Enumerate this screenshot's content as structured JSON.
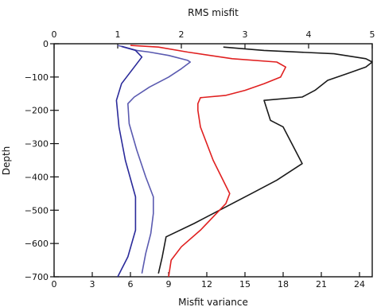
{
  "chart_data": {
    "type": "line",
    "title": "RMS misfit",
    "xlabel": "Misfit variance",
    "ylabel": "Depth",
    "x_bottom": {
      "label": "Misfit variance",
      "range": [
        0,
        25
      ],
      "ticks": [
        0,
        3,
        6,
        9,
        12,
        15,
        18,
        21,
        24
      ]
    },
    "x_top": {
      "label": "RMS misfit",
      "range": [
        0,
        5
      ],
      "ticks": [
        0,
        1,
        2,
        3,
        4,
        5
      ]
    },
    "y": {
      "label": "Depth",
      "range": [
        -700,
        0
      ],
      "ticks": [
        0,
        -100,
        -200,
        -300,
        -400,
        -500,
        -600,
        -700
      ]
    },
    "grid": false,
    "series": [
      {
        "color": "#1a1a1a",
        "points": [
          [
            13.3,
            -10
          ],
          [
            16.5,
            -20
          ],
          [
            22,
            -30
          ],
          [
            24.5,
            -45
          ],
          [
            25,
            -55
          ],
          [
            24.5,
            -70
          ],
          [
            23,
            -90
          ],
          [
            21.5,
            -110
          ],
          [
            20.5,
            -140
          ],
          [
            19.5,
            -160
          ],
          [
            16.5,
            -170
          ],
          [
            17,
            -230
          ],
          [
            18,
            -250
          ],
          [
            19.5,
            -360
          ],
          [
            17.5,
            -410
          ],
          [
            15.5,
            -450
          ],
          [
            13,
            -500
          ],
          [
            11,
            -540
          ],
          [
            8.8,
            -580
          ],
          [
            8.5,
            -640
          ],
          [
            8.2,
            -690
          ]
        ]
      },
      {
        "color": "#e02020",
        "points": [
          [
            6,
            -5
          ],
          [
            8.2,
            -10
          ],
          [
            10.5,
            -25
          ],
          [
            14,
            -45
          ],
          [
            17.5,
            -55
          ],
          [
            18.2,
            -70
          ],
          [
            17.8,
            -100
          ],
          [
            16.5,
            -120
          ],
          [
            15,
            -140
          ],
          [
            13.5,
            -155
          ],
          [
            11.5,
            -162
          ],
          [
            11.3,
            -180
          ],
          [
            11.3,
            -200
          ],
          [
            11.5,
            -250
          ],
          [
            12.5,
            -350
          ],
          [
            13.8,
            -450
          ],
          [
            13.5,
            -480
          ],
          [
            12.5,
            -520
          ],
          [
            11.5,
            -560
          ],
          [
            10,
            -610
          ],
          [
            9.2,
            -650
          ],
          [
            9,
            -700
          ]
        ]
      },
      {
        "color": "#5a5ab0",
        "points": [
          [
            5,
            -5
          ],
          [
            5.5,
            -10
          ],
          [
            6.5,
            -20
          ],
          [
            7.5,
            -25
          ],
          [
            9,
            -35
          ],
          [
            10.5,
            -50
          ],
          [
            10.7,
            -55
          ],
          [
            10,
            -75
          ],
          [
            9,
            -100
          ],
          [
            7.5,
            -130
          ],
          [
            6.3,
            -160
          ],
          [
            5.8,
            -180
          ],
          [
            5.9,
            -240
          ],
          [
            6.5,
            -320
          ],
          [
            7.2,
            -400
          ],
          [
            7.8,
            -460
          ],
          [
            7.8,
            -510
          ],
          [
            7.6,
            -570
          ],
          [
            7.2,
            -630
          ],
          [
            6.9,
            -690
          ]
        ]
      },
      {
        "color": "#2a2a9a",
        "points": [
          [
            5.3,
            -8
          ],
          [
            6.4,
            -20
          ],
          [
            6.9,
            -40
          ],
          [
            6.4,
            -65
          ],
          [
            5.3,
            -120
          ],
          [
            4.9,
            -170
          ],
          [
            5.1,
            -250
          ],
          [
            5.6,
            -350
          ],
          [
            6.4,
            -460
          ],
          [
            6.4,
            -560
          ],
          [
            5.8,
            -640
          ],
          [
            5,
            -700
          ]
        ]
      }
    ]
  }
}
